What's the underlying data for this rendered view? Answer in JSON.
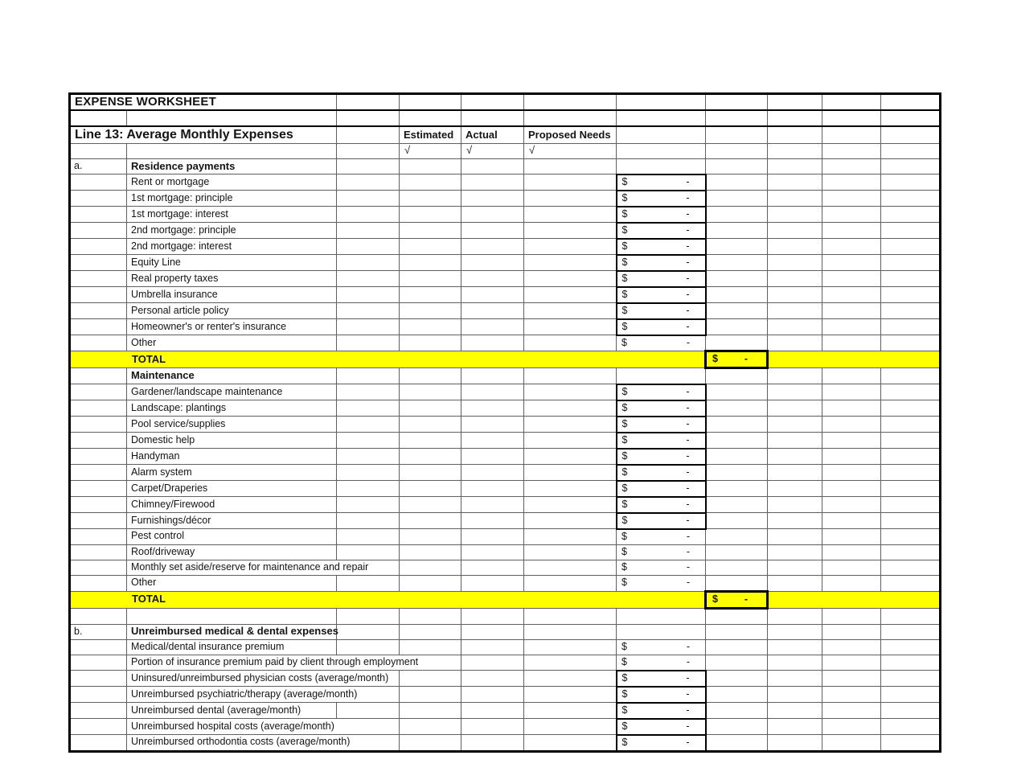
{
  "worksheet": {
    "title": "EXPENSE WORKSHEET",
    "line_header": "Line 13: Average Monthly Expenses",
    "column_headers": {
      "estimated": "Estimated",
      "actual": "Actual",
      "proposed": "Proposed Needs"
    },
    "checkmark": "√",
    "currency": "$",
    "total_label": "TOTAL",
    "total_amount": "-",
    "colors": {
      "highlight": "#ffff00",
      "gridline": "#606060",
      "border": "#000000",
      "background": "#ffffff"
    },
    "sections": [
      {
        "index": "a.",
        "name": "Residence payments",
        "blank_before": false,
        "total": true,
        "items": [
          {
            "label": "Rent or mortgage",
            "amount": "-",
            "boxed": true,
            "label_colspan": 1
          },
          {
            "label": "1st mortgage: principle",
            "amount": "-",
            "boxed": true,
            "label_colspan": 1
          },
          {
            "label": "1st mortgage: interest",
            "amount": "-",
            "boxed": true,
            "label_colspan": 1
          },
          {
            "label": "2nd mortgage: principle",
            "amount": "-",
            "boxed": true,
            "label_colspan": 1
          },
          {
            "label": "2nd mortgage: interest",
            "amount": "-",
            "boxed": true,
            "label_colspan": 1
          },
          {
            "label": "Equity Line",
            "amount": "-",
            "boxed": true,
            "label_colspan": 1
          },
          {
            "label": "Real property taxes",
            "amount": "-",
            "boxed": true,
            "label_colspan": 1
          },
          {
            "label": "Umbrella insurance",
            "amount": "-",
            "boxed": true,
            "label_colspan": 1
          },
          {
            "label": "Personal article policy",
            "amount": "-",
            "boxed": true,
            "label_colspan": 1
          },
          {
            "label": "Homeowner's or renter's insurance",
            "amount": "-",
            "boxed": true,
            "label_colspan": 1
          },
          {
            "label": "Other",
            "amount": "-",
            "boxed": false,
            "label_colspan": 1
          }
        ]
      },
      {
        "index": "",
        "name": "Maintenance",
        "blank_before": false,
        "total": true,
        "items": [
          {
            "label": "Gardener/landscape maintenance",
            "amount": "-",
            "boxed": true,
            "label_colspan": 1
          },
          {
            "label": "Landscape: plantings",
            "amount": "-",
            "boxed": true,
            "label_colspan": 1
          },
          {
            "label": "Pool service/supplies",
            "amount": "-",
            "boxed": true,
            "label_colspan": 1
          },
          {
            "label": "Domestic help",
            "amount": "-",
            "boxed": true,
            "label_colspan": 1
          },
          {
            "label": "Handyman",
            "amount": "-",
            "boxed": true,
            "label_colspan": 1
          },
          {
            "label": "Alarm system",
            "amount": "-",
            "boxed": true,
            "label_colspan": 1
          },
          {
            "label": "Carpet/Draperies",
            "amount": "-",
            "boxed": true,
            "label_colspan": 1
          },
          {
            "label": "Chimney/Firewood",
            "amount": "-",
            "boxed": true,
            "label_colspan": 1
          },
          {
            "label": "Furnishings/décor",
            "amount": "-",
            "boxed": true,
            "label_colspan": 1
          },
          {
            "label": "Pest control",
            "amount": "-",
            "boxed": false,
            "label_colspan": 1
          },
          {
            "label": "Roof/driveway",
            "amount": "-",
            "boxed": false,
            "label_colspan": 1
          },
          {
            "label": "Monthly set aside/reserve for maintenance and repair",
            "amount": "-",
            "boxed": false,
            "label_colspan": 2
          },
          {
            "label": "Other",
            "amount": "-",
            "boxed": false,
            "label_colspan": 1
          }
        ]
      },
      {
        "index": "b.",
        "name": "Unreimbursed medical & dental expenses",
        "blank_before": true,
        "total": false,
        "items": [
          {
            "label": "Medical/dental insurance premium",
            "amount": "-",
            "boxed": false,
            "label_colspan": 1
          },
          {
            "label": "Portion of insurance premium paid by client through employment",
            "amount": "-",
            "boxed": false,
            "label_colspan": 3
          },
          {
            "label": "Uninsured/unreimbursed physician costs (average/month)",
            "amount": "-",
            "boxed": true,
            "label_colspan": 2
          },
          {
            "label": "Unreimbursed psychiatric/therapy (average/month)",
            "amount": "-",
            "boxed": true,
            "label_colspan": 2
          },
          {
            "label": "Unreimbursed dental (average/month)",
            "amount": "-",
            "boxed": true,
            "label_colspan": 1
          },
          {
            "label": "Unreimbursed hospital costs (average/month)",
            "amount": "-",
            "boxed": true,
            "label_colspan": 2
          },
          {
            "label": "Unreimbursed orthodontia costs (average/month)",
            "amount": "-",
            "boxed": true,
            "label_colspan": 2
          }
        ]
      }
    ]
  }
}
